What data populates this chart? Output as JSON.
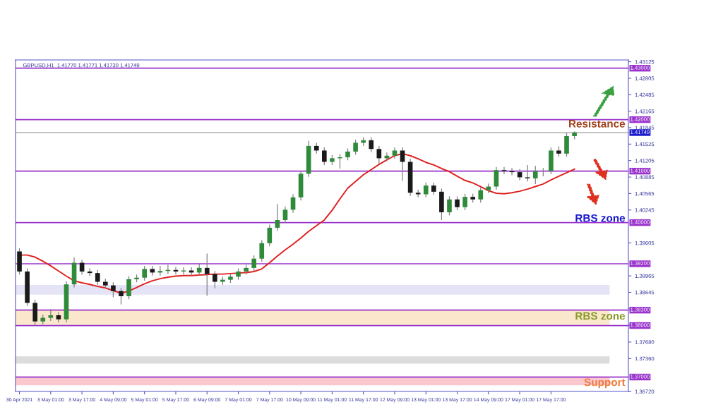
{
  "chart_data": {
    "type": "candlestick",
    "title": "GBPUSD,H1  1.41770 1.41771 1.41730 1.41749",
    "categories": [
      "30 Apr 2021",
      null,
      null,
      null,
      "3 May 01:00",
      null,
      null,
      null,
      "3 May 17:00",
      null,
      null,
      null,
      "4 May 09:00",
      null,
      null,
      null,
      "5 May 01:00",
      null,
      null,
      null,
      "5 May 17:00",
      null,
      null,
      null,
      "6 May 09:00",
      null,
      null,
      null,
      "7 May 01:00",
      null,
      null,
      null,
      "7 May 17:00",
      null,
      null,
      null,
      "10 May 09:00",
      null,
      null,
      null,
      "11 May 01:00",
      null,
      null,
      null,
      "11 May 17:00",
      null,
      null,
      null,
      "12 May 09:00",
      null,
      null,
      null,
      "13 May 01:00",
      null,
      null,
      null,
      "13 May 17:00",
      null,
      null,
      null,
      "14 May 09:00",
      null,
      null,
      null,
      "17 May 01:00",
      null,
      null,
      null,
      "17 May 17:00",
      null,
      null,
      null
    ],
    "ohlc": [
      [
        1.3944,
        1.395,
        1.3899,
        1.3905
      ],
      [
        1.3905,
        1.3911,
        1.3838,
        1.3844
      ],
      [
        1.3844,
        1.385,
        1.38,
        1.3808
      ],
      [
        1.3808,
        1.3821,
        1.3802,
        1.3815
      ],
      [
        1.3815,
        1.3832,
        1.3809,
        1.382
      ],
      [
        1.382,
        1.3826,
        1.3806,
        1.3812
      ],
      [
        1.3812,
        1.3886,
        1.3806,
        1.388
      ],
      [
        1.388,
        1.3932,
        1.3874,
        1.3922
      ],
      [
        1.3922,
        1.3928,
        1.3899,
        1.3905
      ],
      [
        1.3905,
        1.3911,
        1.3896,
        1.3902
      ],
      [
        1.3902,
        1.3908,
        1.3879,
        1.3885
      ],
      [
        1.3885,
        1.3891,
        1.3872,
        1.3878
      ],
      [
        1.3878,
        1.3884,
        1.3855,
        1.3867
      ],
      [
        1.3867,
        1.3873,
        1.3841,
        1.3857
      ],
      [
        1.3857,
        1.3896,
        1.3851,
        1.389
      ],
      [
        1.389,
        1.3899,
        1.3884,
        1.3893
      ],
      [
        1.3893,
        1.3916,
        1.3887,
        1.391
      ],
      [
        1.391,
        1.3916,
        1.3897,
        1.3903
      ],
      [
        1.3903,
        1.3916,
        1.3897,
        1.3906
      ],
      [
        1.3906,
        1.3918,
        1.39,
        1.3908
      ],
      [
        1.3908,
        1.3914,
        1.3899,
        1.3905
      ],
      [
        1.3905,
        1.3913,
        1.3899,
        1.3907
      ],
      [
        1.3907,
        1.3913,
        1.3897,
        1.3903
      ],
      [
        1.3903,
        1.392,
        1.3897,
        1.3912
      ],
      [
        1.3912,
        1.394,
        1.3858,
        1.39
      ],
      [
        1.39,
        1.3906,
        1.3872,
        1.3885
      ],
      [
        1.3885,
        1.3895,
        1.3879,
        1.3889
      ],
      [
        1.3889,
        1.3901,
        1.3883,
        1.3895
      ],
      [
        1.3895,
        1.3911,
        1.3889,
        1.3905
      ],
      [
        1.3905,
        1.3918,
        1.3899,
        1.3912
      ],
      [
        1.3912,
        1.3936,
        1.3906,
        1.393
      ],
      [
        1.393,
        1.3966,
        1.3924,
        1.396
      ],
      [
        1.396,
        1.3996,
        1.3954,
        1.399
      ],
      [
        1.399,
        1.4036,
        1.3984,
        1.4005
      ],
      [
        1.4005,
        1.4031,
        1.3999,
        1.4025
      ],
      [
        1.4025,
        1.4055,
        1.4019,
        1.4049
      ],
      [
        1.4049,
        1.4101,
        1.4043,
        1.4095
      ],
      [
        1.4095,
        1.4159,
        1.4089,
        1.4149
      ],
      [
        1.4149,
        1.4155,
        1.4134,
        1.414
      ],
      [
        1.414,
        1.4146,
        1.4112,
        1.4118
      ],
      [
        1.4118,
        1.4131,
        1.4112,
        1.4125
      ],
      [
        1.4125,
        1.4133,
        1.4105,
        1.4127
      ],
      [
        1.4127,
        1.4144,
        1.4121,
        1.4138
      ],
      [
        1.4138,
        1.4161,
        1.4132,
        1.4155
      ],
      [
        1.4155,
        1.4166,
        1.4149,
        1.416
      ],
      [
        1.416,
        1.4166,
        1.4137,
        1.4143
      ],
      [
        1.4143,
        1.4149,
        1.4114,
        1.4125
      ],
      [
        1.4125,
        1.4136,
        1.4119,
        1.413
      ],
      [
        1.413,
        1.4146,
        1.4124,
        1.414
      ],
      [
        1.414,
        1.4146,
        1.4081,
        1.4118
      ],
      [
        1.4118,
        1.4124,
        1.4052,
        1.4058
      ],
      [
        1.4058,
        1.4064,
        1.4049,
        1.4055
      ],
      [
        1.4055,
        1.4078,
        1.4049,
        1.4072
      ],
      [
        1.4072,
        1.4078,
        1.4054,
        1.406
      ],
      [
        1.406,
        1.4066,
        1.4005,
        1.402
      ],
      [
        1.402,
        1.4051,
        1.4014,
        1.4045
      ],
      [
        1.4045,
        1.4051,
        1.4024,
        1.403
      ],
      [
        1.403,
        1.4056,
        1.4024,
        1.405
      ],
      [
        1.405,
        1.4056,
        1.4039,
        1.4045
      ],
      [
        1.4045,
        1.4069,
        1.4039,
        1.4063
      ],
      [
        1.4063,
        1.4076,
        1.4057,
        1.407
      ],
      [
        1.407,
        1.4108,
        1.4064,
        1.4102
      ],
      [
        1.4102,
        1.4108,
        1.4094,
        1.41
      ],
      [
        1.41,
        1.4106,
        1.4092,
        1.4098
      ],
      [
        1.4098,
        1.4104,
        1.4082,
        1.4088
      ],
      [
        1.4088,
        1.4112,
        1.408,
        1.4086
      ],
      [
        1.4086,
        1.411,
        1.4075,
        1.41
      ],
      [
        1.41,
        1.4106,
        1.409,
        1.41
      ],
      [
        1.41,
        1.4146,
        1.4094,
        1.414
      ],
      [
        1.414,
        1.4148,
        1.4128,
        1.4134
      ],
      [
        1.4134,
        1.4174,
        1.4128,
        1.4168
      ],
      [
        1.4168,
        1.41771,
        1.4162,
        1.41749
      ]
    ],
    "series": [
      {
        "type": "line",
        "color": "#e02020",
        "values": [
          1.3937,
          1.3937,
          1.3933,
          1.3925,
          1.3916,
          1.3906,
          1.3896,
          1.3887,
          1.3883,
          1.388,
          1.3876,
          1.3873,
          1.3868,
          1.3863,
          1.3867,
          1.3874,
          1.3881,
          1.3887,
          1.3891,
          1.3894,
          1.3896,
          1.3897,
          1.3897,
          1.3898,
          1.3899,
          1.39,
          1.39,
          1.3901,
          1.3902,
          1.3903,
          1.3905,
          1.391,
          1.3922,
          1.3935,
          1.3947,
          1.3958,
          1.397,
          1.3983,
          1.3994,
          1.4005,
          1.4024,
          1.4046,
          1.4067,
          1.408,
          1.4093,
          1.4103,
          1.4113,
          1.4122,
          1.413,
          1.4134,
          1.413,
          1.4124,
          1.4117,
          1.4112,
          1.4105,
          1.4099,
          1.409,
          1.4082,
          1.4077,
          1.407,
          1.4062,
          1.4057,
          1.4056,
          1.4058,
          1.4061,
          1.4065,
          1.407,
          1.4075,
          1.4083,
          1.409,
          1.4097,
          1.4104
        ]
      }
    ],
    "ylim": [
      1.3672,
      1.4316
    ],
    "yticks": [
      1.43125,
      1.42805,
      1.42485,
      1.42165,
      1.41845,
      1.41525,
      1.41205,
      1.40885,
      1.40565,
      1.40245,
      1.39605,
      1.38965,
      1.38645,
      {
        "value": 1.38325,
        "label": null
      },
      {
        "value": 1.38005,
        "label": null
      },
      {
        "value": 1.3768,
        "label": "1.37680"
      },
      {
        "value": 1.3736,
        "label": "1.37360"
      },
      {
        "value": 1.3672,
        "label": "1.36720"
      }
    ],
    "ref_lines": [
      {
        "axis": "y",
        "value": 1.43,
        "label": "1.43000",
        "color": "#9933cc"
      },
      {
        "axis": "y",
        "value": 1.42,
        "label": "1.42000",
        "color": "#9933cc"
      },
      {
        "axis": "y",
        "value": 1.41749,
        "label": "1.41749",
        "color": "#b0b0b0"
      },
      {
        "axis": "y",
        "value": 1.41,
        "label": "1.41000",
        "color": "#9933cc"
      },
      {
        "axis": "y",
        "value": 1.4,
        "label": "1.40000",
        "color": "#9933cc"
      },
      {
        "axis": "y",
        "value": 1.392,
        "label": "1.39200",
        "color": "#9933cc"
      },
      {
        "axis": "y",
        "value": 1.383,
        "label": "1.38300",
        "color": "#9933cc"
      },
      {
        "axis": "y",
        "value": 1.38,
        "label": "1.38000",
        "color": "#9933cc"
      },
      {
        "axis": "y",
        "value": 1.37,
        "label": "1.37000",
        "color": "#9933cc"
      }
    ],
    "bands": [
      {
        "axis": "y",
        "from": 1.386,
        "to": 1.3879,
        "color": "#e4e4f6"
      },
      {
        "axis": "y",
        "from": 1.38,
        "to": 1.383,
        "color": "#fbe8cc"
      },
      {
        "axis": "y",
        "from": 1.3726,
        "to": 1.374,
        "color": "#dcdcdc"
      },
      {
        "axis": "y",
        "from": 1.3684,
        "to": 1.37,
        "color": "#fbc8d0"
      }
    ],
    "annotations": [
      "Resistance",
      "RBS zone",
      "RBS zone",
      "Support"
    ],
    "grid": false
  }
}
